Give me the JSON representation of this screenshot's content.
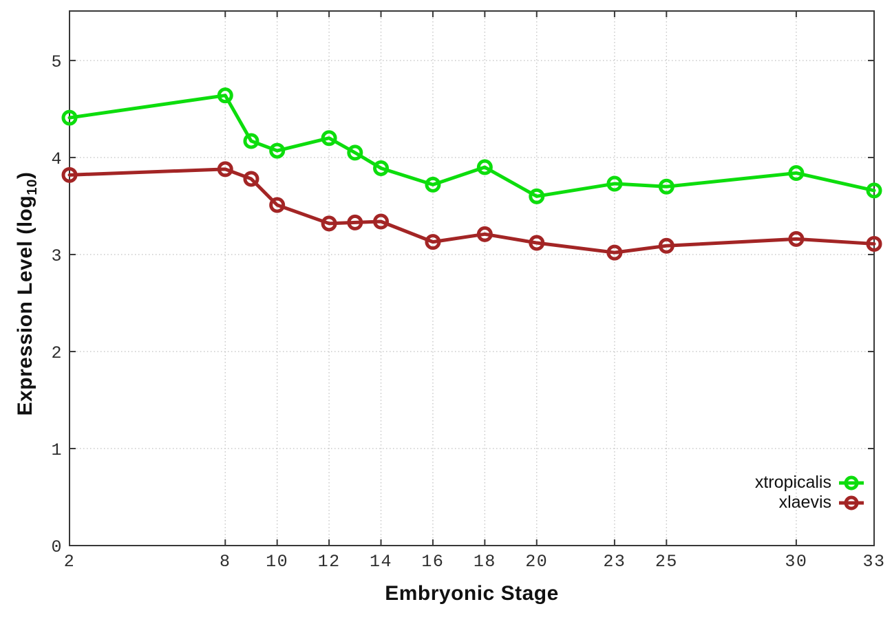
{
  "figure": {
    "background": "#ffffff",
    "border_color": "#383838",
    "grid_color": "#c6c6c6",
    "tick_label_color": "#2e2e2e"
  },
  "axis_titles": {
    "x": "Embryonic Stage",
    "y_prefix": "Expression Level (log",
    "y_sub": "10",
    "y_suffix": ")"
  },
  "legend": {
    "entries": [
      "xtropicalis",
      "xlaevis"
    ]
  },
  "chart_data": {
    "type": "line",
    "title": "",
    "xlabel": "Embryonic Stage",
    "ylabel": "Expression Level (log10)",
    "x": [
      2,
      8,
      9,
      10,
      12,
      13,
      14,
      16,
      18,
      20,
      23,
      25,
      30,
      33
    ],
    "series": [
      {
        "name": "xtropicalis",
        "color": "#0ddd0d",
        "values": [
          4.41,
          4.64,
          4.17,
          4.07,
          4.2,
          4.05,
          3.89,
          3.72,
          3.9,
          3.6,
          3.73,
          3.7,
          3.84,
          3.66
        ]
      },
      {
        "name": "xlaevis",
        "color": "#a32525",
        "values": [
          3.82,
          3.88,
          3.78,
          3.51,
          3.32,
          3.33,
          3.34,
          3.13,
          3.21,
          3.12,
          3.02,
          3.09,
          3.16,
          3.11
        ]
      }
    ],
    "xlim": [
      2,
      33
    ],
    "ylim": [
      0,
      5.51
    ],
    "x_ticks": [
      2,
      8,
      10,
      12,
      14,
      16,
      18,
      20,
      23,
      25,
      30,
      33
    ],
    "y_ticks": [
      0,
      1,
      2,
      3,
      4,
      5
    ],
    "grid": true,
    "grid_style": "dotted",
    "marker": "open-circle",
    "legend_position": "inside-bottom-right"
  }
}
